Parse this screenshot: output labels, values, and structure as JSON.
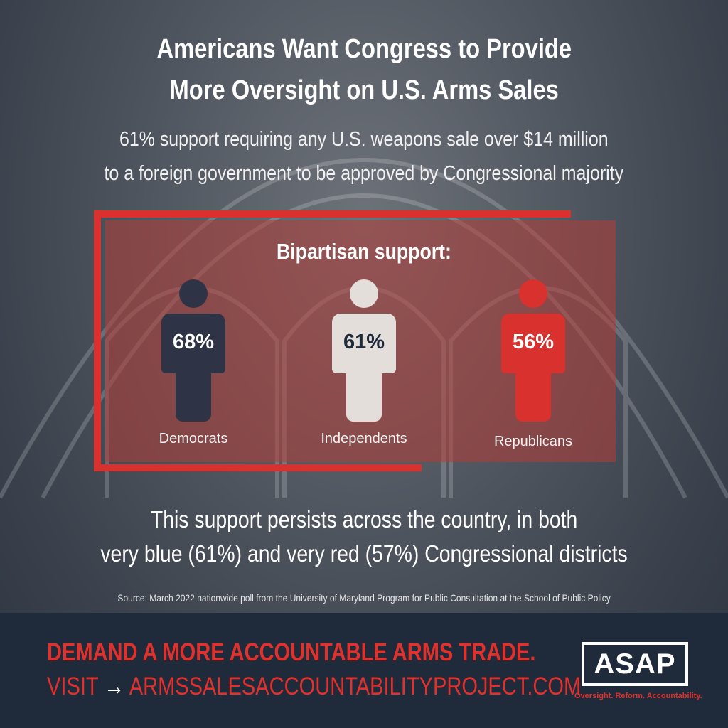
{
  "title": {
    "line1": "Americans Want Congress to Provide",
    "line2": "More Oversight on U.S. Arms Sales"
  },
  "subtitle": {
    "line1": "61% support requiring any U.S. weapons sale over $14 million",
    "line2": "to a foreign government to be approved by Congressional majority"
  },
  "panel": {
    "heading": "Bipartisan support:",
    "groups": [
      {
        "label": "Democrats",
        "value": "68%",
        "color": "#2e3446"
      },
      {
        "label": "Independents",
        "value": "61%",
        "color": "#e4dedb"
      },
      {
        "label": "Republicans",
        "value": "56%",
        "color": "#d8312e"
      }
    ]
  },
  "persist": {
    "line1": "This support persists across the country, in both",
    "line2": "very blue (61%) and very red (57%) Congressional districts"
  },
  "source": "Source: March 2022 nationwide poll from the University of Maryland Program for Public Consultation at the School of Public Policy",
  "footer": {
    "cta": "DEMAND A MORE ACCOUNTABLE ARMS TRADE.",
    "visit": "VISIT",
    "arrow": "→",
    "url": "ARMSSALESACCOUNTABILITYPROJECT.COM",
    "logo": "ASAP",
    "tagline": "Oversight. Reform. Accountability."
  },
  "colors": {
    "accent": "#d8312e",
    "footer_bg": "#1f2a3b"
  }
}
